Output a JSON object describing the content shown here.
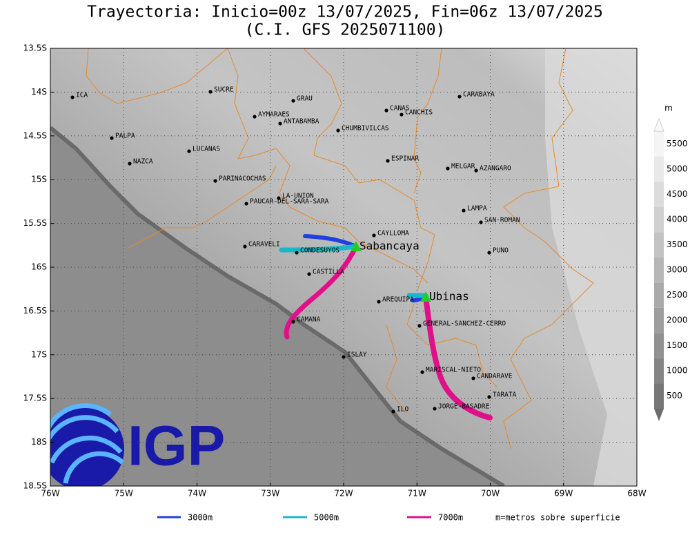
{
  "title": [
    "Trayectoria: Inicio=00z 13/07/2025, Fin=06z 13/07/2025",
    "(C.I. GFS 2025071100)"
  ],
  "lon_ticks": [
    "76W",
    "75W",
    "74W",
    "73W",
    "72W",
    "71W",
    "70W",
    "69W",
    "68W"
  ],
  "lat_ticks": [
    "13.5S",
    "14S",
    "14.5S",
    "15S",
    "15.5S",
    "16S",
    "16.5S",
    "17S",
    "17.5S",
    "18S",
    "18.5S"
  ],
  "places": [
    "ICA",
    "SUCRE",
    "GRAU",
    "AYMARAES",
    "ANTABAMBA",
    "CANAS",
    "CANCHIS",
    "CHUMBIVILCAS",
    "CARABAYA",
    "PALPA",
    "LUCANAS",
    "NAZCA",
    "ESPINAR",
    "MELGAR",
    "AZANGARO",
    "PARINACOCHAS",
    "LA-UNION",
    "PAUCAR-DEL-SARA-SARA",
    "LAMPA",
    "SAN-ROMAN",
    "CAYLLOMA",
    "CARAVELI",
    "CONDESUYOS",
    "PUNO",
    "CASTILLA",
    "AREQUIPA",
    "CAMANA",
    "GENERAL-SANCHEZ-CERRO",
    "ISLAY",
    "MARISCAL-NIETO",
    "CANDARAVE",
    "TARATA",
    "ILO",
    "JORGE-BASADRE"
  ],
  "volcanoes": [
    "Sabancaya",
    "Ubinas"
  ],
  "colorbar": {
    "unit": "m",
    "labels": [
      500,
      1000,
      1500,
      2000,
      2500,
      3000,
      3500,
      4000,
      4500,
      5000,
      5500
    ]
  },
  "legend": {
    "items": [
      "3000m",
      "5000m",
      "7000m"
    ],
    "note": "m=metros sobre superficie"
  },
  "logo": "IGP"
}
